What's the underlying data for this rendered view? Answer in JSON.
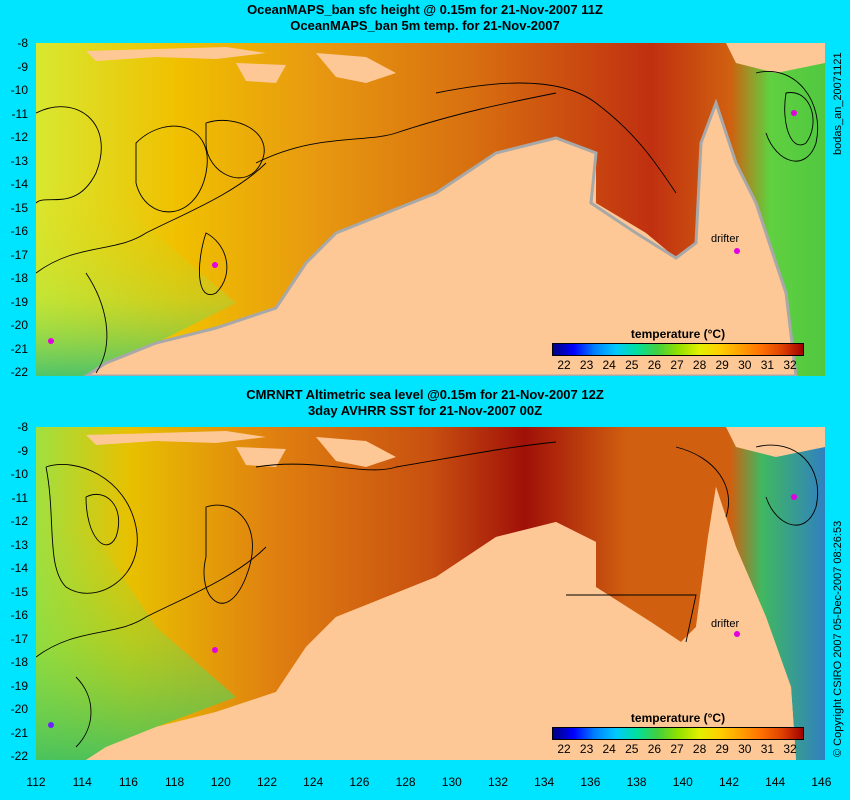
{
  "top_panel": {
    "title_line1": "OceanMAPS_ban sfc height @ 0.15m for 21-Nov-2007 11Z",
    "title_line2": "OceanMAPS_ban 5m temp. for 21-Nov-2007",
    "drifter_label": "drifter",
    "legend_title": "temperature (°C)",
    "side_label": "bodas_an_20071121"
  },
  "bottom_panel": {
    "title_line1": "CMRNRT Altimetric sea level  @0.15m  for 21-Nov-2007 12Z",
    "title_line2": "3day AVHRR SST for 21-Nov-2007 00Z",
    "drifter_label": "drifter",
    "legend_title": "temperature (°C)",
    "side_label": "© Copyright CSIRO 2007   05-Dec-2007 08:26:53"
  },
  "legend_ticks": [
    "22",
    "23",
    "24",
    "25",
    "26",
    "27",
    "28",
    "29",
    "30",
    "31",
    "32"
  ],
  "y_ticks": [
    "-8",
    "-9",
    "-10",
    "-11",
    "-12",
    "-13",
    "-14",
    "-15",
    "-16",
    "-17",
    "-18",
    "-19",
    "-20",
    "-21",
    "-22"
  ],
  "x_ticks": [
    "112",
    "114",
    "116",
    "118",
    "120",
    "122",
    "124",
    "126",
    "128",
    "130",
    "132",
    "134",
    "136",
    "138",
    "140",
    "142",
    "144",
    "146"
  ],
  "colors": {
    "background": "#00e5ff",
    "land": "#fdc896",
    "warm": "#d05010",
    "cool": "#c8e840"
  }
}
